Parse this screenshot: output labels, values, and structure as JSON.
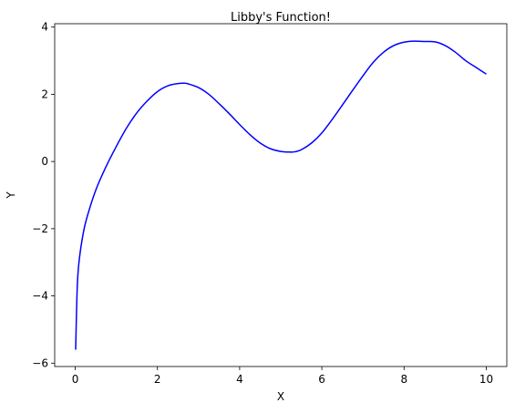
{
  "chart_data": {
    "type": "line",
    "title": "Libby's Function!",
    "xlabel": "X",
    "ylabel": "Y",
    "xlim": [
      -0.5,
      10.5
    ],
    "ylim": [
      -6.1,
      4.1
    ],
    "xticks": [
      0,
      2,
      4,
      6,
      8,
      10
    ],
    "yticks": [
      -6,
      -4,
      -2,
      0,
      2,
      4
    ],
    "xtick_labels": [
      "0",
      "2",
      "4",
      "6",
      "8",
      "10"
    ],
    "ytick_labels": [
      "−6",
      "−4",
      "−2",
      "0",
      "2",
      "4"
    ],
    "grid": false,
    "series": [
      {
        "color": "#0000ff",
        "x": [
          0.01,
          0.05,
          0.1,
          0.2,
          0.3,
          0.5,
          0.75,
          1.0,
          1.25,
          1.5,
          1.75,
          2.0,
          2.25,
          2.5,
          2.65,
          2.75,
          3.0,
          3.25,
          3.5,
          3.75,
          4.0,
          4.25,
          4.5,
          4.75,
          5.0,
          5.25,
          5.35,
          5.5,
          5.75,
          6.0,
          6.25,
          6.5,
          6.75,
          7.0,
          7.25,
          7.5,
          7.75,
          8.0,
          8.25,
          8.5,
          8.75,
          9.0,
          9.25,
          9.5,
          9.75,
          10.0
        ],
        "y": [
          -5.6,
          -3.7,
          -2.9,
          -2.1,
          -1.6,
          -0.85,
          -0.15,
          0.45,
          1.0,
          1.45,
          1.8,
          2.08,
          2.25,
          2.32,
          2.33,
          2.31,
          2.2,
          2.0,
          1.72,
          1.42,
          1.1,
          0.8,
          0.55,
          0.38,
          0.3,
          0.28,
          0.29,
          0.35,
          0.55,
          0.85,
          1.25,
          1.68,
          2.12,
          2.55,
          2.95,
          3.25,
          3.45,
          3.55,
          3.58,
          3.57,
          3.56,
          3.45,
          3.25,
          3.0,
          2.8,
          2.6
        ]
      }
    ]
  }
}
